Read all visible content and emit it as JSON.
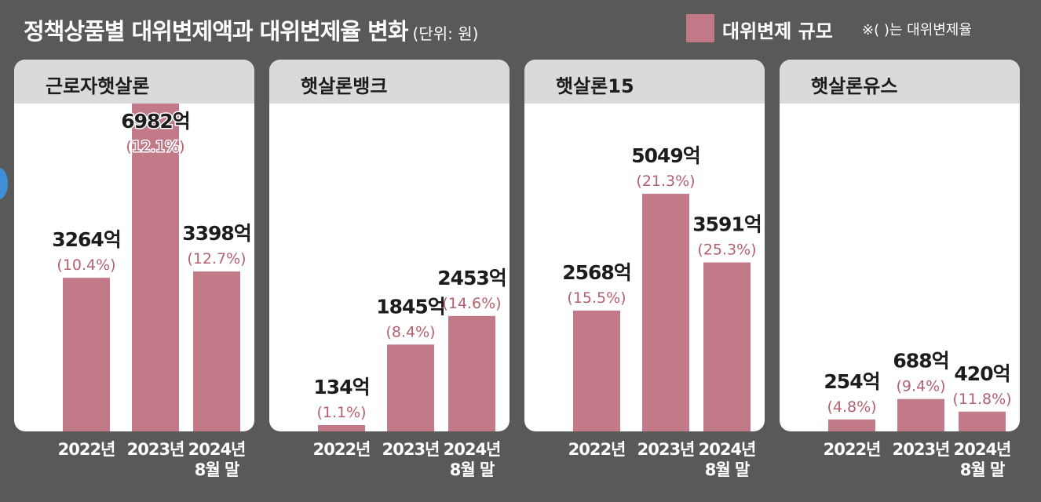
{
  "header": {
    "title": "정책상품별 대위변제액과 대위변제율 변화",
    "unit": "(단위: 원)",
    "legend_label": "대위변제 규모",
    "legend_note": "※( )는 대위변제율"
  },
  "colors": {
    "bar": "#c27a88",
    "background": "#595959",
    "panel": "#ffffff",
    "panel_header": "#dadada",
    "value_text": "#1c1c1c",
    "rate_text": "#b36070"
  },
  "chart_data": [
    {
      "type": "bar",
      "title": "근로자햇살론",
      "categories": [
        "2022년",
        "2023년",
        "2024년\n8월 말"
      ],
      "values": [
        3264,
        6982,
        3398
      ],
      "value_labels": [
        "3264억",
        "6982억",
        "3398억"
      ],
      "rates": [
        10.4,
        12.1,
        12.7
      ],
      "rate_labels": [
        "(10.4%)",
        "(12.1%)",
        "(12.7%)"
      ]
    },
    {
      "type": "bar",
      "title": "햇살론뱅크",
      "categories": [
        "2022년",
        "2023년",
        "2024년\n8월 말"
      ],
      "values": [
        134,
        1845,
        2453
      ],
      "value_labels": [
        "134억",
        "1845억",
        "2453억"
      ],
      "rates": [
        1.1,
        8.4,
        14.6
      ],
      "rate_labels": [
        "(1.1%)",
        "(8.4%)",
        "(14.6%)"
      ]
    },
    {
      "type": "bar",
      "title": "햇살론15",
      "categories": [
        "2022년",
        "2023년",
        "2024년\n8월 말"
      ],
      "values": [
        2568,
        5049,
        3591
      ],
      "value_labels": [
        "2568억",
        "5049억",
        "3591억"
      ],
      "rates": [
        15.5,
        21.3,
        25.3
      ],
      "rate_labels": [
        "(15.5%)",
        "(21.3%)",
        "(25.3%)"
      ]
    },
    {
      "type": "bar",
      "title": "햇살론유스",
      "categories": [
        "2022년",
        "2023년",
        "2024년\n8월 말"
      ],
      "values": [
        254,
        688,
        420
      ],
      "value_labels": [
        "254억",
        "688억",
        "420억"
      ],
      "rates": [
        4.8,
        9.4,
        11.8
      ],
      "rate_labels": [
        "(4.8%)",
        "(9.4%)",
        "(11.8%)"
      ]
    }
  ]
}
